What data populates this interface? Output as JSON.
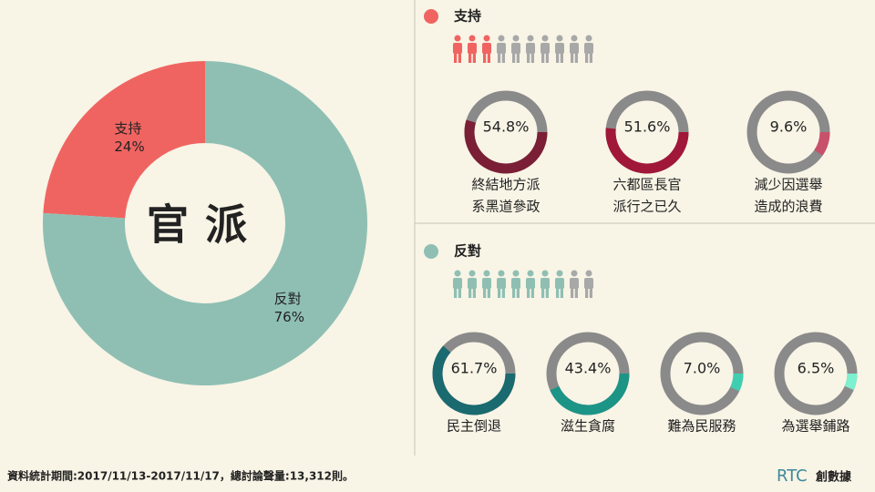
{
  "chart_data": [
    {
      "type": "pie",
      "title": "官派",
      "categories": [
        "支持",
        "反對"
      ],
      "values": [
        24,
        76
      ],
      "value_labels": [
        "24%",
        "76%"
      ],
      "colors": [
        "#ef6461",
        "#8fbfb3"
      ]
    },
    {
      "type": "gauge",
      "title": "支持",
      "color": "#ef6461",
      "icons": {
        "filled": 3,
        "total": 10
      },
      "items": [
        {
          "label": [
            "終結地方派",
            "系黑道參政"
          ],
          "value": 54.8,
          "value_label": "54.8%",
          "color": "#7a1f35"
        },
        {
          "label": [
            "六都區長官",
            "派行之已久"
          ],
          "value": 51.6,
          "value_label": "51.6%",
          "color": "#a0173a"
        },
        {
          "label": [
            "減少因選舉",
            "造成的浪費"
          ],
          "value": 9.6,
          "value_label": "9.6%",
          "color": "#c9506a"
        }
      ]
    },
    {
      "type": "gauge",
      "title": "反對",
      "color": "#8fbfb3",
      "icons": {
        "filled": 8,
        "total": 10
      },
      "items": [
        {
          "label": [
            "民主倒退"
          ],
          "value": 61.7,
          "value_label": "61.7%",
          "color": "#1a6a6f"
        },
        {
          "label": [
            "滋生貪腐"
          ],
          "value": 43.4,
          "value_label": "43.4%",
          "color": "#1c9486"
        },
        {
          "label": [
            "難為民服務"
          ],
          "value": 7.0,
          "value_label": "7.0%",
          "color": "#3fcfb0"
        },
        {
          "label": [
            "為選舉鋪路"
          ],
          "value": 6.5,
          "value_label": "6.5%",
          "color": "#7cf0cf"
        }
      ]
    }
  ],
  "footer": "資料統計期間:2017/11/13-2017/11/17，總討論聲量:13,312則。",
  "logo": {
    "brand": "RTC",
    "name": "創數據"
  }
}
